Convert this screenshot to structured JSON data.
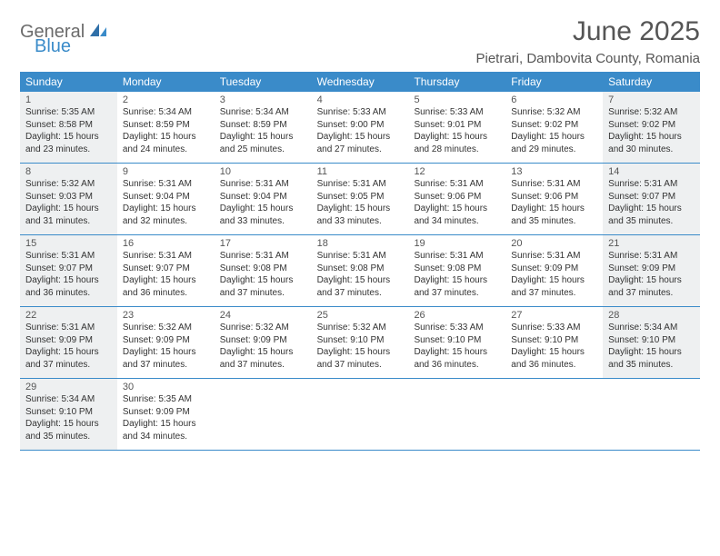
{
  "logo": {
    "part1": "General",
    "part2": "Blue"
  },
  "title": "June 2025",
  "location": "Pietrari, Dambovita County, Romania",
  "weekdays": [
    "Sunday",
    "Monday",
    "Tuesday",
    "Wednesday",
    "Thursday",
    "Friday",
    "Saturday"
  ],
  "colors": {
    "header_bg": "#3a8bc9",
    "shaded_bg": "#eef0f1",
    "rule": "#3a8bc9",
    "title_color": "#555",
    "logo_gray": "#6b6b6b",
    "logo_blue": "#3a8bc9"
  },
  "weeks": [
    [
      {
        "n": "1",
        "shaded": true,
        "sr": "Sunrise: 5:35 AM",
        "ss": "Sunset: 8:58 PM",
        "d1": "Daylight: 15 hours",
        "d2": "and 23 minutes."
      },
      {
        "n": "2",
        "shaded": false,
        "sr": "Sunrise: 5:34 AM",
        "ss": "Sunset: 8:59 PM",
        "d1": "Daylight: 15 hours",
        "d2": "and 24 minutes."
      },
      {
        "n": "3",
        "shaded": false,
        "sr": "Sunrise: 5:34 AM",
        "ss": "Sunset: 8:59 PM",
        "d1": "Daylight: 15 hours",
        "d2": "and 25 minutes."
      },
      {
        "n": "4",
        "shaded": false,
        "sr": "Sunrise: 5:33 AM",
        "ss": "Sunset: 9:00 PM",
        "d1": "Daylight: 15 hours",
        "d2": "and 27 minutes."
      },
      {
        "n": "5",
        "shaded": false,
        "sr": "Sunrise: 5:33 AM",
        "ss": "Sunset: 9:01 PM",
        "d1": "Daylight: 15 hours",
        "d2": "and 28 minutes."
      },
      {
        "n": "6",
        "shaded": false,
        "sr": "Sunrise: 5:32 AM",
        "ss": "Sunset: 9:02 PM",
        "d1": "Daylight: 15 hours",
        "d2": "and 29 minutes."
      },
      {
        "n": "7",
        "shaded": true,
        "sr": "Sunrise: 5:32 AM",
        "ss": "Sunset: 9:02 PM",
        "d1": "Daylight: 15 hours",
        "d2": "and 30 minutes."
      }
    ],
    [
      {
        "n": "8",
        "shaded": true,
        "sr": "Sunrise: 5:32 AM",
        "ss": "Sunset: 9:03 PM",
        "d1": "Daylight: 15 hours",
        "d2": "and 31 minutes."
      },
      {
        "n": "9",
        "shaded": false,
        "sr": "Sunrise: 5:31 AM",
        "ss": "Sunset: 9:04 PM",
        "d1": "Daylight: 15 hours",
        "d2": "and 32 minutes."
      },
      {
        "n": "10",
        "shaded": false,
        "sr": "Sunrise: 5:31 AM",
        "ss": "Sunset: 9:04 PM",
        "d1": "Daylight: 15 hours",
        "d2": "and 33 minutes."
      },
      {
        "n": "11",
        "shaded": false,
        "sr": "Sunrise: 5:31 AM",
        "ss": "Sunset: 9:05 PM",
        "d1": "Daylight: 15 hours",
        "d2": "and 33 minutes."
      },
      {
        "n": "12",
        "shaded": false,
        "sr": "Sunrise: 5:31 AM",
        "ss": "Sunset: 9:06 PM",
        "d1": "Daylight: 15 hours",
        "d2": "and 34 minutes."
      },
      {
        "n": "13",
        "shaded": false,
        "sr": "Sunrise: 5:31 AM",
        "ss": "Sunset: 9:06 PM",
        "d1": "Daylight: 15 hours",
        "d2": "and 35 minutes."
      },
      {
        "n": "14",
        "shaded": true,
        "sr": "Sunrise: 5:31 AM",
        "ss": "Sunset: 9:07 PM",
        "d1": "Daylight: 15 hours",
        "d2": "and 35 minutes."
      }
    ],
    [
      {
        "n": "15",
        "shaded": true,
        "sr": "Sunrise: 5:31 AM",
        "ss": "Sunset: 9:07 PM",
        "d1": "Daylight: 15 hours",
        "d2": "and 36 minutes."
      },
      {
        "n": "16",
        "shaded": false,
        "sr": "Sunrise: 5:31 AM",
        "ss": "Sunset: 9:07 PM",
        "d1": "Daylight: 15 hours",
        "d2": "and 36 minutes."
      },
      {
        "n": "17",
        "shaded": false,
        "sr": "Sunrise: 5:31 AM",
        "ss": "Sunset: 9:08 PM",
        "d1": "Daylight: 15 hours",
        "d2": "and 37 minutes."
      },
      {
        "n": "18",
        "shaded": false,
        "sr": "Sunrise: 5:31 AM",
        "ss": "Sunset: 9:08 PM",
        "d1": "Daylight: 15 hours",
        "d2": "and 37 minutes."
      },
      {
        "n": "19",
        "shaded": false,
        "sr": "Sunrise: 5:31 AM",
        "ss": "Sunset: 9:08 PM",
        "d1": "Daylight: 15 hours",
        "d2": "and 37 minutes."
      },
      {
        "n": "20",
        "shaded": false,
        "sr": "Sunrise: 5:31 AM",
        "ss": "Sunset: 9:09 PM",
        "d1": "Daylight: 15 hours",
        "d2": "and 37 minutes."
      },
      {
        "n": "21",
        "shaded": true,
        "sr": "Sunrise: 5:31 AM",
        "ss": "Sunset: 9:09 PM",
        "d1": "Daylight: 15 hours",
        "d2": "and 37 minutes."
      }
    ],
    [
      {
        "n": "22",
        "shaded": true,
        "sr": "Sunrise: 5:31 AM",
        "ss": "Sunset: 9:09 PM",
        "d1": "Daylight: 15 hours",
        "d2": "and 37 minutes."
      },
      {
        "n": "23",
        "shaded": false,
        "sr": "Sunrise: 5:32 AM",
        "ss": "Sunset: 9:09 PM",
        "d1": "Daylight: 15 hours",
        "d2": "and 37 minutes."
      },
      {
        "n": "24",
        "shaded": false,
        "sr": "Sunrise: 5:32 AM",
        "ss": "Sunset: 9:09 PM",
        "d1": "Daylight: 15 hours",
        "d2": "and 37 minutes."
      },
      {
        "n": "25",
        "shaded": false,
        "sr": "Sunrise: 5:32 AM",
        "ss": "Sunset: 9:10 PM",
        "d1": "Daylight: 15 hours",
        "d2": "and 37 minutes."
      },
      {
        "n": "26",
        "shaded": false,
        "sr": "Sunrise: 5:33 AM",
        "ss": "Sunset: 9:10 PM",
        "d1": "Daylight: 15 hours",
        "d2": "and 36 minutes."
      },
      {
        "n": "27",
        "shaded": false,
        "sr": "Sunrise: 5:33 AM",
        "ss": "Sunset: 9:10 PM",
        "d1": "Daylight: 15 hours",
        "d2": "and 36 minutes."
      },
      {
        "n": "28",
        "shaded": true,
        "sr": "Sunrise: 5:34 AM",
        "ss": "Sunset: 9:10 PM",
        "d1": "Daylight: 15 hours",
        "d2": "and 35 minutes."
      }
    ],
    [
      {
        "n": "29",
        "shaded": true,
        "sr": "Sunrise: 5:34 AM",
        "ss": "Sunset: 9:10 PM",
        "d1": "Daylight: 15 hours",
        "d2": "and 35 minutes."
      },
      {
        "n": "30",
        "shaded": false,
        "sr": "Sunrise: 5:35 AM",
        "ss": "Sunset: 9:09 PM",
        "d1": "Daylight: 15 hours",
        "d2": "and 34 minutes."
      },
      {
        "empty": true
      },
      {
        "empty": true
      },
      {
        "empty": true
      },
      {
        "empty": true
      },
      {
        "empty": true
      }
    ]
  ]
}
